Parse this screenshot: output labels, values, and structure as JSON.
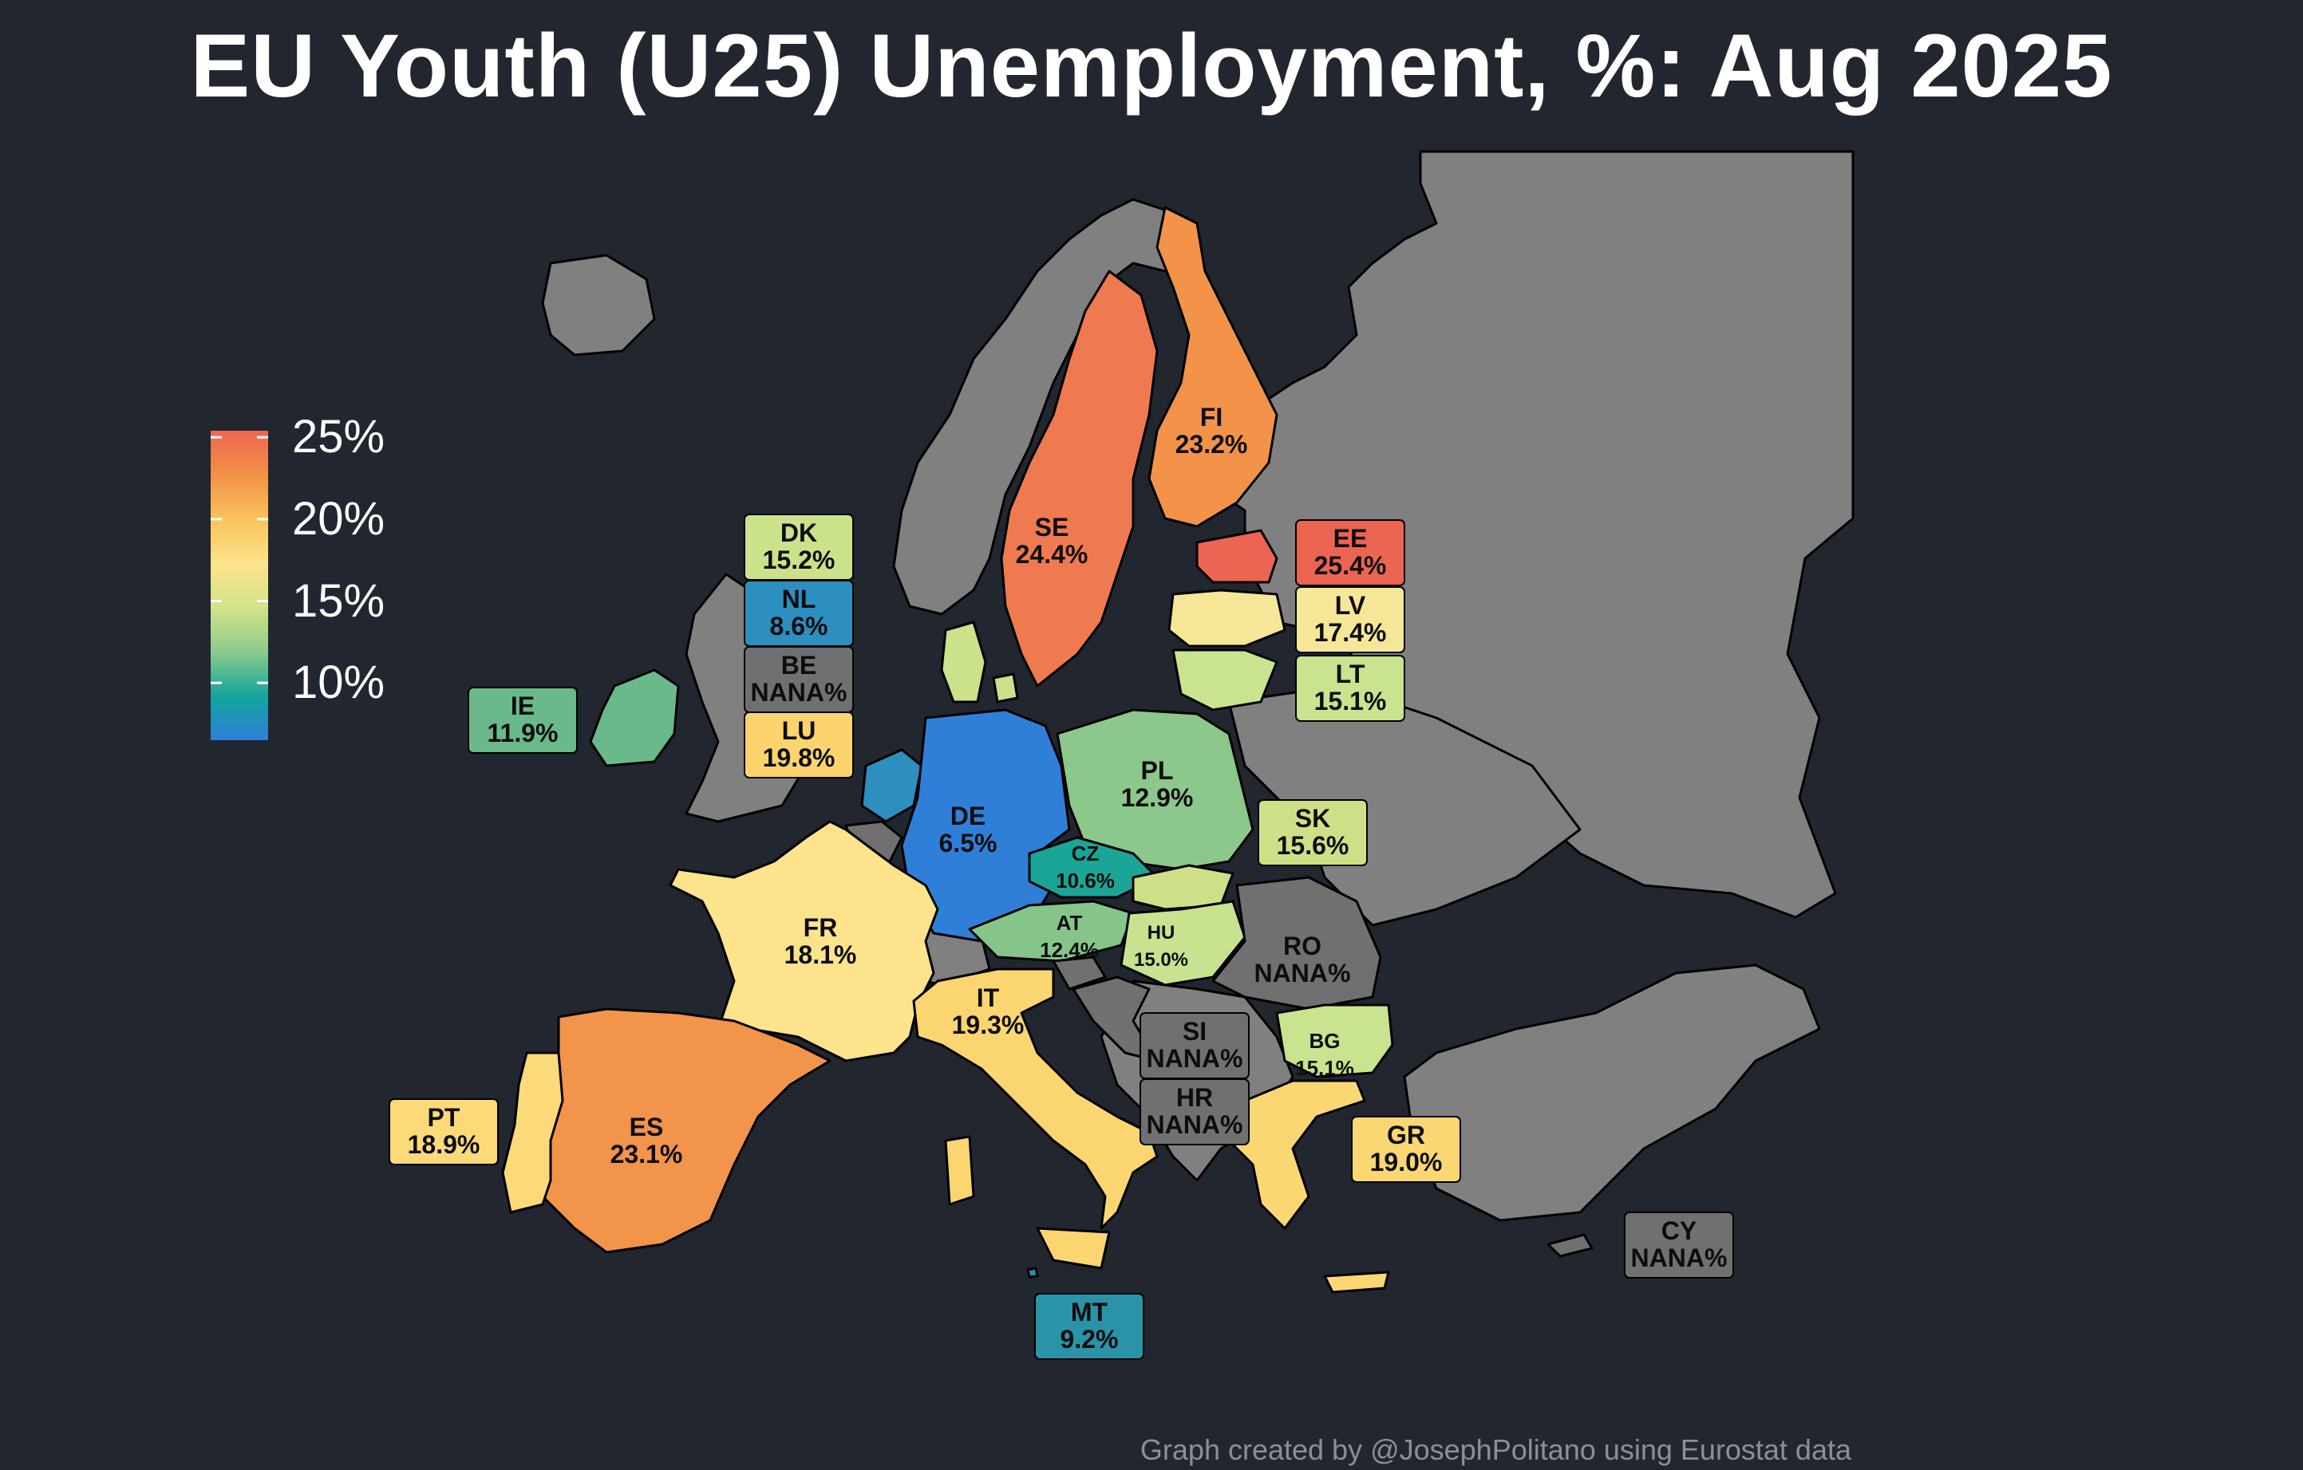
{
  "title": "EU Youth (U25) Unemployment, %: Aug 2025",
  "caption": "Graph created by @JosephPolitano using Eurostat data",
  "legend": {
    "ticks": [
      "25%",
      "20%",
      "15%",
      "10%"
    ],
    "tick_values": [
      25,
      20,
      15,
      10
    ],
    "range": [
      6.5,
      25.4
    ],
    "colors": [
      "#2f7fd9",
      "#13a59a",
      "#8ccb8c",
      "#d3e38a",
      "#fde38b",
      "#f8c35c",
      "#f29148",
      "#ee6650"
    ]
  },
  "colors": {
    "background": "#22262f",
    "non_eu_land": "#808080",
    "no_data": "#707070",
    "border": "#000000"
  },
  "countries": [
    {
      "code": "SE",
      "value": "24.4%",
      "num": 24.4,
      "color": "#f07a50"
    },
    {
      "code": "FI",
      "value": "23.2%",
      "num": 23.2,
      "color": "#f29349"
    },
    {
      "code": "EE",
      "value": "25.4%",
      "num": 25.4,
      "color": "#ec6452"
    },
    {
      "code": "LV",
      "value": "17.4%",
      "num": 17.4,
      "color": "#f6e697"
    },
    {
      "code": "LT",
      "value": "15.1%",
      "num": 15.1,
      "color": "#c9e38e"
    },
    {
      "code": "DK",
      "value": "15.2%",
      "num": 15.2,
      "color": "#cbe28a"
    },
    {
      "code": "NL",
      "value": "8.6%",
      "num": 8.6,
      "color": "#2d8fc0"
    },
    {
      "code": "BE",
      "value": "NANA%",
      "num": null,
      "color": "#707070"
    },
    {
      "code": "LU",
      "value": "19.8%",
      "num": 19.8,
      "color": "#fbd46e"
    },
    {
      "code": "IE",
      "value": "11.9%",
      "num": 11.9,
      "color": "#6ab98b"
    },
    {
      "code": "DE",
      "value": "6.5%",
      "num": 6.5,
      "color": "#2f7fd9"
    },
    {
      "code": "PL",
      "value": "12.9%",
      "num": 12.9,
      "color": "#8cc88c"
    },
    {
      "code": "CZ",
      "value": "10.6%",
      "num": 10.6,
      "color": "#1aa597"
    },
    {
      "code": "SK",
      "value": "15.6%",
      "num": 15.6,
      "color": "#cee087"
    },
    {
      "code": "AT",
      "value": "12.4%",
      "num": 12.4,
      "color": "#86c58a"
    },
    {
      "code": "HU",
      "value": "15.0%",
      "num": 15.0,
      "color": "#c9e28f"
    },
    {
      "code": "RO",
      "value": "NANA%",
      "num": null,
      "color": "#707070"
    },
    {
      "code": "FR",
      "value": "18.1%",
      "num": 18.1,
      "color": "#fde38b"
    },
    {
      "code": "IT",
      "value": "19.3%",
      "num": 19.3,
      "color": "#fbd670"
    },
    {
      "code": "SI",
      "value": "NANA%",
      "num": null,
      "color": "#707070"
    },
    {
      "code": "HR",
      "value": "NANA%",
      "num": null,
      "color": "#707070"
    },
    {
      "code": "BG",
      "value": "15.1%",
      "num": 15.1,
      "color": "#c9e38e"
    },
    {
      "code": "GR",
      "value": "19.0%",
      "num": 19.0,
      "color": "#fbd773"
    },
    {
      "code": "PT",
      "value": "18.9%",
      "num": 18.9,
      "color": "#fcda7a"
    },
    {
      "code": "ES",
      "value": "23.1%",
      "num": 23.1,
      "color": "#f2944a"
    },
    {
      "code": "MT",
      "value": "9.2%",
      "num": 9.2,
      "color": "#2a93a8"
    },
    {
      "code": "CY",
      "value": "NANA%",
      "num": null,
      "color": "#707070"
    }
  ]
}
